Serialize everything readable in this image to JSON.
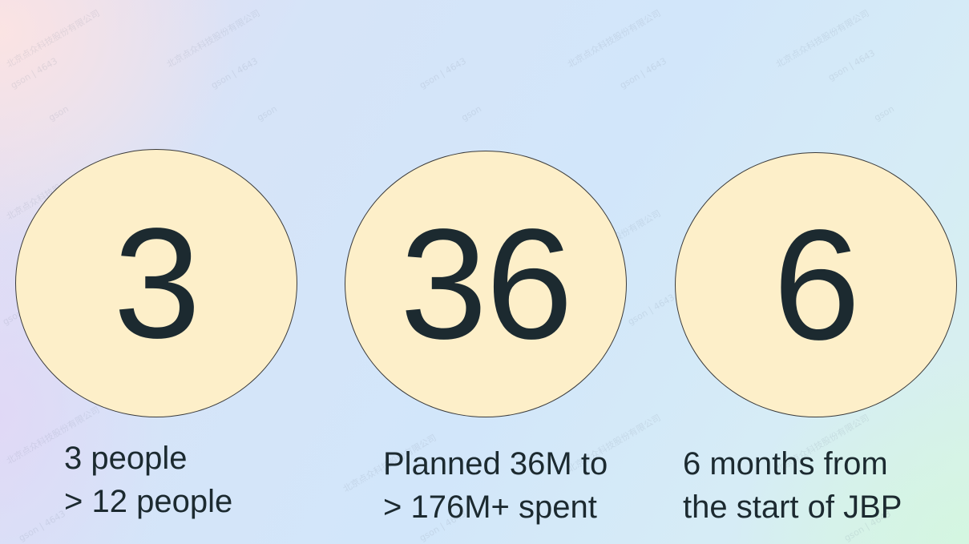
{
  "stats": [
    {
      "number": "3",
      "caption_line1": "3 people",
      "caption_line2": "> 12 people"
    },
    {
      "number": "36",
      "caption_line1": "Planned 36M to",
      "caption_line2": "> 176M+ spent"
    },
    {
      "number": "6",
      "caption_line1": "6 months from",
      "caption_line2": "the start of JBP"
    }
  ],
  "watermark": {
    "company": "北京点众科技股份有限公司",
    "user": "gson | 4643",
    "short": "gson"
  },
  "colors": {
    "circle_fill": "#fdefc9",
    "circle_border": "#3a3a3a",
    "text": "#1c2a30"
  }
}
